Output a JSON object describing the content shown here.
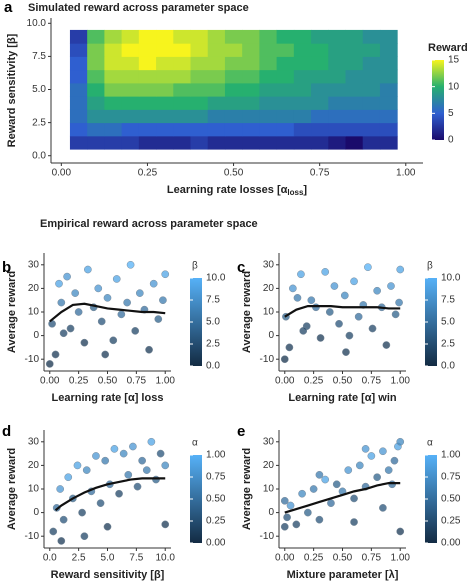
{
  "section_title": "Empirical reward across parameter space",
  "chart_data": [
    {
      "type": "heatmap",
      "panel": "a",
      "title": "Simulated reward across parameter space",
      "x_label": "Learning rate losses [α",
      "x_label_sub": "loss",
      "x_label_end": "]",
      "y_label": "Reward sensitivity [β]",
      "x": [
        0.05,
        0.1,
        0.15,
        0.2,
        0.25,
        0.3,
        0.35,
        0.4,
        0.45,
        0.5,
        0.55,
        0.6,
        0.65,
        0.7,
        0.75,
        0.8,
        0.85,
        0.9,
        0.95
      ],
      "y": [
        1,
        2,
        3,
        4,
        5,
        6,
        7,
        8,
        9
      ],
      "z": [
        [
          3,
          3,
          3,
          3,
          2,
          2,
          2,
          3,
          2,
          2,
          2,
          2,
          2,
          2,
          2,
          1,
          0,
          2,
          2
        ],
        [
          5,
          6,
          6,
          5,
          5,
          5,
          5,
          5,
          5,
          5,
          5,
          5,
          5,
          4,
          4,
          4,
          4,
          4,
          4
        ],
        [
          6,
          8,
          8,
          8,
          8,
          8,
          8,
          8,
          7,
          7,
          7,
          7,
          7,
          7,
          6,
          6,
          6,
          6,
          6
        ],
        [
          6,
          9,
          10,
          10,
          10,
          10,
          10,
          10,
          9,
          9,
          9,
          8,
          8,
          8,
          8,
          7,
          7,
          7,
          7
        ],
        [
          6,
          10,
          12,
          12,
          12,
          12,
          11,
          11,
          11,
          10,
          10,
          9,
          9,
          9,
          8,
          8,
          8,
          8,
          7
        ],
        [
          5,
          11,
          13,
          13,
          13,
          13,
          13,
          12,
          12,
          11,
          11,
          10,
          10,
          9,
          9,
          9,
          8,
          8,
          8
        ],
        [
          5,
          12,
          14,
          14,
          15,
          14,
          14,
          13,
          13,
          12,
          12,
          11,
          10,
          10,
          10,
          9,
          9,
          8,
          8
        ],
        [
          4,
          12,
          14,
          15,
          15,
          15,
          15,
          14,
          13,
          13,
          12,
          11,
          11,
          10,
          10,
          9,
          9,
          9,
          8
        ],
        [
          3,
          11,
          13,
          14,
          15,
          15,
          14,
          14,
          13,
          12,
          12,
          11,
          10,
          10,
          9,
          9,
          9,
          8,
          8
        ]
      ],
      "xlim": [
        -0.03,
        1.05
      ],
      "xticks": [
        {
          "value": 0,
          "label": "0.00"
        },
        0.25,
        {
          "value": 0.5,
          "label": "0.50"
        },
        0.75,
        {
          "value": 1,
          "label": "1.00"
        }
      ],
      "ylim": [
        -0.55,
        10.4
      ],
      "yticks": [
        {
          "value": 0,
          "label": "0.0"
        },
        2.5,
        {
          "value": 5,
          "label": "5.0"
        },
        7.5,
        {
          "value": 10,
          "label": "10.0"
        }
      ],
      "colorbar": {
        "title": "Reward",
        "lim": [
          0,
          15
        ],
        "ticks": [
          0,
          5,
          10,
          15
        ],
        "colors": [
          "#1a0a6b",
          "#2f5fd0",
          "#26b06f",
          "#f7f41d"
        ]
      }
    },
    {
      "type": "scatter",
      "panel": "b",
      "x_label": "Learning rate [α] loss",
      "y_label": "Average reward",
      "x": [
        0.02,
        0.05,
        0.08,
        0.1,
        0.15,
        0.18,
        0.22,
        0.25,
        0.3,
        0.33,
        0.38,
        0.42,
        0.45,
        0.5,
        0.55,
        0.58,
        0.62,
        0.67,
        0.7,
        0.74,
        0.78,
        0.82,
        0.86,
        0.9,
        0.94,
        0.98,
        1.0,
        0.0,
        0.12,
        0.48
      ],
      "values": [
        5,
        -8,
        22,
        14,
        25,
        3,
        18,
        10,
        -3,
        28,
        12,
        20,
        6,
        16,
        -2,
        24,
        9,
        14,
        30,
        2,
        18,
        11,
        -6,
        22,
        7,
        15,
        26,
        -12,
        1,
        -8
      ],
      "c": [
        3,
        1,
        9,
        6,
        8,
        2,
        7,
        5,
        1,
        9,
        4,
        8,
        3,
        7,
        2,
        9,
        5,
        6,
        10,
        2,
        7,
        5,
        1,
        8,
        4,
        6,
        9,
        0.5,
        2,
        1
      ],
      "trend": {
        "x": [
          0,
          0.1,
          0.2,
          0.3,
          0.4,
          0.5,
          0.6,
          0.7,
          0.8,
          0.9,
          1.0
        ],
        "y": [
          6,
          10,
          13,
          13.5,
          12.5,
          11.5,
          11,
          10.5,
          10,
          10,
          9.5
        ]
      },
      "xlim": [
        -0.05,
        1.05
      ],
      "xticks": [
        {
          "value": 0,
          "label": "0.00"
        },
        0.25,
        {
          "value": 0.5,
          "label": "0.50"
        },
        0.75,
        {
          "value": 1,
          "label": "1.00"
        }
      ],
      "ylim": [
        -15,
        35
      ],
      "yticks": [
        -10,
        0,
        10,
        20,
        30
      ],
      "colorbar": {
        "title": "β",
        "lim": [
          0,
          10
        ],
        "ticks": [
          {
            "value": 0,
            "label": "0.0"
          },
          2.5,
          {
            "value": 5,
            "label": "5.0"
          },
          7.5,
          {
            "value": 10,
            "label": "10.0"
          }
        ],
        "colors": [
          "#132b43",
          "#56b1f7"
        ]
      }
    },
    {
      "type": "scatter",
      "panel": "c",
      "x_label": "Learning rate [α] win",
      "y_label": "Average reward",
      "x": [
        0.01,
        0.04,
        0.07,
        0.11,
        0.14,
        0.19,
        0.23,
        0.27,
        0.31,
        0.35,
        0.39,
        0.43,
        0.47,
        0.52,
        0.56,
        0.6,
        0.64,
        0.68,
        0.72,
        0.76,
        0.8,
        0.84,
        0.88,
        0.92,
        0.96,
        0.99,
        1.0,
        0.0,
        0.16,
        0.53
      ],
      "values": [
        8,
        -5,
        20,
        16,
        26,
        4,
        15,
        12,
        -1,
        27,
        10,
        21,
        5,
        17,
        0,
        23,
        8,
        13,
        29,
        3,
        19,
        12,
        -4,
        21,
        9,
        14,
        28,
        -10,
        2,
        -7
      ],
      "c": [
        4,
        1,
        8,
        6,
        9,
        2,
        6,
        5,
        1,
        9,
        4,
        8,
        3,
        7,
        2,
        9,
        5,
        6,
        10,
        2,
        7,
        5,
        1,
        8,
        4,
        6,
        9,
        0.5,
        2,
        1
      ],
      "trend": {
        "x": [
          0,
          0.1,
          0.2,
          0.3,
          0.4,
          0.5,
          0.6,
          0.7,
          0.8,
          0.9,
          1.0
        ],
        "y": [
          8,
          11,
          12.5,
          12.5,
          12.5,
          12,
          12,
          12,
          12,
          11.5,
          11.5
        ]
      },
      "xlim": [
        -0.05,
        1.05
      ],
      "xticks": [
        {
          "value": 0,
          "label": "0.00"
        },
        0.25,
        {
          "value": 0.5,
          "label": "0.50"
        },
        0.75,
        {
          "value": 1,
          "label": "1.00"
        }
      ],
      "ylim": [
        -15,
        35
      ],
      "yticks": [
        -10,
        0,
        10,
        20,
        30
      ],
      "colorbar": {
        "title": "β",
        "lim": [
          0,
          10
        ],
        "ticks": [
          {
            "value": 0,
            "label": "0.0"
          },
          2.5,
          {
            "value": 5,
            "label": "5.0"
          },
          7.5,
          {
            "value": 10,
            "label": "10.0"
          }
        ],
        "colors": [
          "#132b43",
          "#56b1f7"
        ]
      }
    },
    {
      "type": "scatter",
      "panel": "d",
      "x_label": "Reward sensitivity [β]",
      "y_label": "Average reward",
      "x": [
        0.3,
        0.6,
        0.9,
        1.2,
        1.6,
        2.0,
        2.4,
        2.8,
        3.2,
        3.6,
        4.0,
        4.4,
        4.8,
        5.2,
        5.6,
        6.0,
        6.4,
        6.8,
        7.2,
        7.6,
        8.0,
        8.4,
        8.8,
        9.2,
        9.6,
        10.0,
        10.0,
        1.0,
        3.0,
        5.0
      ],
      "values": [
        -8,
        2,
        10,
        -3,
        15,
        6,
        20,
        0,
        18,
        9,
        24,
        4,
        22,
        12,
        27,
        8,
        25,
        16,
        28,
        11,
        22,
        18,
        30,
        14,
        25,
        20,
        -5,
        -12,
        -10,
        -6
      ],
      "c": [
        0.2,
        0.5,
        0.8,
        0.3,
        0.9,
        0.4,
        0.9,
        0.2,
        0.7,
        0.5,
        0.8,
        0.3,
        0.6,
        0.5,
        0.9,
        0.2,
        0.7,
        0.6,
        0.8,
        0.3,
        0.5,
        0.6,
        0.9,
        0.4,
        0.3,
        0.7,
        0.1,
        0.1,
        0.2,
        0.1
      ],
      "trend": {
        "x": [
          0.5,
          1,
          2,
          3,
          4,
          5,
          6,
          7,
          8,
          9,
          10
        ],
        "y": [
          1,
          3,
          6,
          8.5,
          10.5,
          12,
          13,
          14,
          14.5,
          14.5,
          14.5
        ]
      },
      "xlim": [
        -0.5,
        10.5
      ],
      "xticks": [
        {
          "value": 0,
          "label": "0.0"
        },
        2.5,
        {
          "value": 5,
          "label": "5.0"
        },
        7.5,
        {
          "value": 10,
          "label": "10.0"
        }
      ],
      "ylim": [
        -15,
        35
      ],
      "yticks": [
        -10,
        0,
        10,
        20,
        30
      ],
      "colorbar": {
        "title": "α",
        "lim": [
          0,
          1
        ],
        "ticks": [
          {
            "value": 0,
            "label": "0.00"
          },
          0.25,
          {
            "value": 0.5,
            "label": "0.50"
          },
          0.75,
          {
            "value": 1,
            "label": "1.00"
          }
        ],
        "colors": [
          "#132b43",
          "#56b1f7"
        ]
      }
    },
    {
      "type": "scatter",
      "panel": "e",
      "x_label": "Mixture parameter [λ]",
      "y_label": "Average reward",
      "x": [
        0.0,
        0.02,
        0.05,
        0.1,
        0.15,
        0.2,
        0.25,
        0.3,
        0.35,
        0.4,
        0.45,
        0.5,
        0.55,
        0.6,
        0.65,
        0.7,
        0.75,
        0.8,
        0.85,
        0.9,
        0.95,
        0.98,
        1.0,
        1.0,
        0.0,
        0.3,
        0.6,
        0.85,
        0.93,
        0.7
      ],
      "values": [
        5,
        -2,
        3,
        -5,
        8,
        0,
        10,
        -3,
        14,
        4,
        12,
        9,
        18,
        6,
        20,
        11,
        24,
        15,
        26,
        18,
        22,
        28,
        30,
        -8,
        -6,
        16,
        -4,
        2,
        12,
        27
      ],
      "c": [
        0.5,
        0.3,
        0.8,
        0.2,
        0.7,
        0.4,
        0.6,
        0.3,
        0.9,
        0.5,
        0.4,
        0.6,
        0.8,
        0.3,
        0.7,
        0.5,
        0.9,
        0.4,
        0.8,
        0.6,
        0.5,
        0.9,
        0.7,
        0.1,
        0.2,
        0.6,
        0.2,
        0.3,
        0.5,
        0.8
      ],
      "trend": {
        "x": [
          0,
          0.1,
          0.2,
          0.3,
          0.4,
          0.5,
          0.6,
          0.7,
          0.8,
          0.9,
          1.0
        ],
        "y": [
          0,
          1.5,
          3,
          4.5,
          6,
          7.5,
          9,
          10,
          11.5,
          12.5,
          12.5
        ]
      },
      "xlim": [
        -0.05,
        1.05
      ],
      "xticks": [
        {
          "value": 0,
          "label": "0.00"
        },
        0.25,
        {
          "value": 0.5,
          "label": "0.50"
        },
        0.75,
        {
          "value": 1,
          "label": "1.00"
        }
      ],
      "ylim": [
        -15,
        35
      ],
      "yticks": [
        -10,
        0,
        10,
        20,
        30
      ],
      "colorbar": {
        "title": "α",
        "lim": [
          0,
          1
        ],
        "ticks": [
          {
            "value": 0,
            "label": "0.00"
          },
          0.25,
          {
            "value": 0.5,
            "label": "0.50"
          },
          0.75,
          {
            "value": 1,
            "label": "1.00"
          }
        ],
        "colors": [
          "#132b43",
          "#56b1f7"
        ]
      }
    }
  ]
}
